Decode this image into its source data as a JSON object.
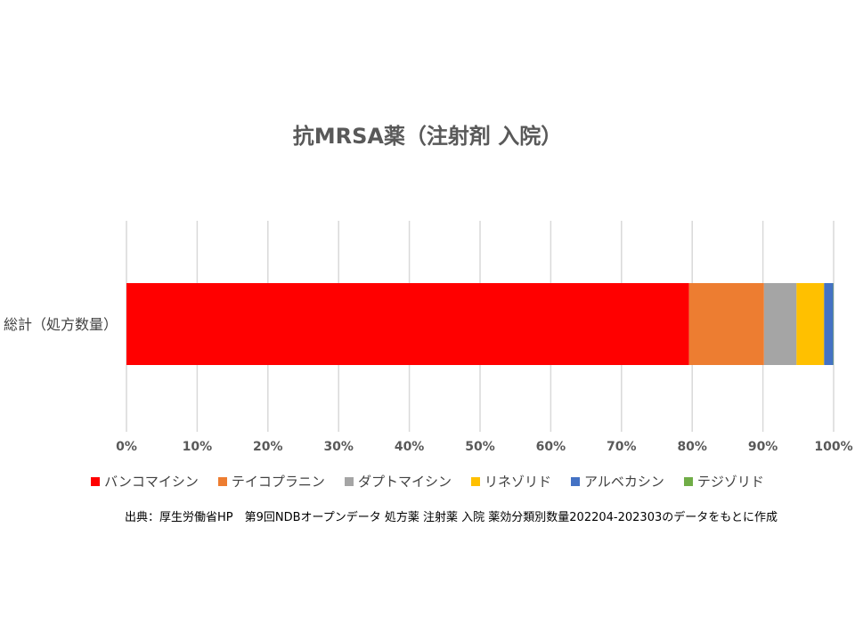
{
  "chart_data": {
    "type": "bar",
    "orientation": "horizontal",
    "stacked": "percent",
    "title": "抗MRSA薬（注射剤 入院）",
    "categories": [
      "総計（処方数量）"
    ],
    "series": [
      {
        "name": "バンコマイシン",
        "values": [
          79.6
        ],
        "color": "#ff0000"
      },
      {
        "name": "テイコプラニン",
        "values": [
          10.6
        ],
        "color": "#ed7d31"
      },
      {
        "name": "ダプトマイシン",
        "values": [
          4.6
        ],
        "color": "#a5a5a5"
      },
      {
        "name": "リネゾリド",
        "values": [
          3.9
        ],
        "color": "#ffc000"
      },
      {
        "name": "アルベカシン",
        "values": [
          1.3
        ],
        "color": "#4472c4"
      },
      {
        "name": "テジゾリド",
        "values": [
          0.05
        ],
        "color": "#70ad47"
      }
    ],
    "xlim": [
      0,
      100
    ],
    "x_ticks": [
      "0%",
      "10%",
      "20%",
      "30%",
      "40%",
      "50%",
      "60%",
      "70%",
      "80%",
      "90%",
      "100%"
    ],
    "grid": true,
    "legend_position": "bottom"
  },
  "source_note": "出典：厚生労働省HP　第9回NDBオープンデータ 処方薬 注射薬 入院 薬効分類別数量202204-202303のデータをもとに作成"
}
